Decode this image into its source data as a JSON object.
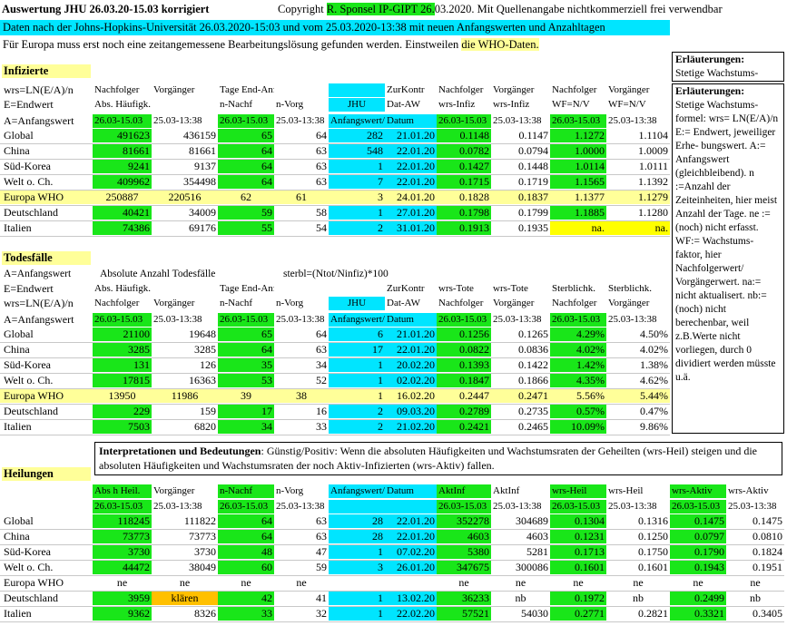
{
  "header": {
    "title": "Auswertung JHU 26.03.20-15.03 korrigiert",
    "copyright_pre": "Copyright ",
    "copyright_hl": "R. Sponsel IP-GIPT 26.",
    "copyright_post": "03.2020. Mit Quellenangabe nichtkommerziell frei verwendbar",
    "line2": "Daten nach der Johns-Hopkins-Universität 26.03.2020-15:03 und vom 25.03.2020-13:38 mit neuen Anfangswerten und Anzahltagen",
    "line3_pre": "Für Europa muss erst noch eine zeitangemessene Bearbeitungslösung gefunden werden. Einstweilen ",
    "line3_hl": "die WHO-Daten."
  },
  "sidebar": {
    "box1_title": "Erläuterungen:",
    "box1_text": "Stetige Wachstums-",
    "box2_title": "Erläuterungen:",
    "box2_text": "Stetige Wachstums-formel: wrs= LN(E/A)/n E:= Endwert, jeweiliger Erhe- bungswert. A:= Anfangswert (gleichbleibend). n :=Anzahl der Zeiteinheiten, hier meist Anzahl der Tage. ne := (noch) nicht erfasst. WF:= Wachstums-faktor, hier Nachfolgerwert/ Vorgängerwert. na:= nicht aktualisert. nb:=(noch) nicht berechenbar, weil z.B.Werte nicht vorliegen, durch 0 dividiert werden müsste u.ä."
  },
  "infizierte": {
    "title": "Infizierte",
    "hdr1": [
      "wrs=LN(E/A)/n",
      "Nachfolger",
      "Vorgänger",
      "Tage End-Anf-Wert",
      "",
      "",
      "ZurKontr",
      "Nachfolger",
      "Vorgänger",
      "Nachfolger",
      "Vorgänger"
    ],
    "hdr2": [
      "E=Endwert",
      "Abs. Häufigk. Infiz.",
      "",
      "n-Nachf",
      "n-Vorg",
      "JHU",
      "Dat-AW",
      "wrs-Infiz",
      "wrs-Infiz",
      "WF=N/V",
      "WF=N/V"
    ],
    "hdr3": [
      "A=Anfangswert",
      "26.03-15.03",
      "25.03-13:38",
      "26.03-15.03",
      "25.03-13:38",
      "Anfangswert/",
      "Datum",
      "26.03-15.03",
      "25.03-13:38",
      "26.03-15.03",
      "25.03-13:38"
    ],
    "rows": [
      [
        "Global",
        "491623",
        "436159",
        "65",
        "64",
        "282",
        "21.01.20",
        "0.1148",
        "0.1147",
        "1.1272",
        "1.1104"
      ],
      [
        "China",
        "81661",
        "81661",
        "64",
        "63",
        "548",
        "22.01.20",
        "0.0782",
        "0.0794",
        "1.0000",
        "1.0009"
      ],
      [
        "Süd-Korea",
        "9241",
        "9137",
        "64",
        "63",
        "1",
        "22.01.20",
        "0.1427",
        "0.1448",
        "1.0114",
        "1.0111"
      ],
      [
        "Welt o. Ch.",
        "409962",
        "354498",
        "64",
        "63",
        "7",
        "22.01.20",
        "0.1715",
        "0.1719",
        "1.1565",
        "1.1392"
      ],
      [
        "Europa WHO",
        "250887",
        "220516",
        "62",
        "61",
        "3",
        "24.01.20",
        "0.1828",
        "0.1837",
        "1.1377",
        "1.1279"
      ],
      [
        "Deutschland",
        "40421",
        "34009",
        "59",
        "58",
        "1",
        "27.01.20",
        "0.1798",
        "0.1799",
        "1.1885",
        "1.1280"
      ],
      [
        "Italien",
        "74386",
        "69176",
        "55",
        "54",
        "2",
        "31.01.20",
        "0.1913",
        "0.1935",
        "na.",
        "na."
      ]
    ]
  },
  "todesfaelle": {
    "title": "Todesfälle",
    "sub_a": "A=Anfangswert",
    "sub_b": "Absolute Anzahl Todesfälle",
    "sub_c": "sterbl=(Ntot/Ninfiz)*100",
    "hdr1": [
      "E=Endwert",
      "Abs. Häufigk. Tote",
      "",
      "Tage End-Anf-Wert",
      "",
      "",
      "ZurKontr",
      "wrs-Tote",
      "wrs-Tote",
      "Sterblichk.",
      "Sterblichk."
    ],
    "hdr2": [
      "wrs=LN(E/A)/n",
      "Nachfolger",
      "Vorgänger",
      "n-Nachf",
      "n-Vorg",
      "JHU",
      "Dat-AW",
      "Nachfolger",
      "Vorgänger",
      "Nachfolger",
      "Vorgänger"
    ],
    "hdr3": [
      "A=Anfangswert",
      "26.03-15.03",
      "25.03-13:38",
      "26.03-15.03",
      "25.03-13:38",
      "Anfangswert/",
      "Datum",
      "26.03-15.03",
      "25.03-13:38",
      "26.03-15.03",
      "25.03-13:38"
    ],
    "rows": [
      [
        "Global",
        "21100",
        "19648",
        "65",
        "64",
        "6",
        "21.01.20",
        "0.1256",
        "0.1265",
        "4.29%",
        "4.50%"
      ],
      [
        "China",
        "3285",
        "3285",
        "64",
        "63",
        "17",
        "22.01.20",
        "0.0822",
        "0.0836",
        "4.02%",
        "4.02%"
      ],
      [
        "Süd-Korea",
        "131",
        "126",
        "35",
        "34",
        "1",
        "20.02.20",
        "0.1393",
        "0.1422",
        "1.42%",
        "1.38%"
      ],
      [
        "Welt o. Ch.",
        "17815",
        "16363",
        "53",
        "52",
        "1",
        "02.02.20",
        "0.1847",
        "0.1866",
        "4.35%",
        "4.62%"
      ],
      [
        "Europa WHO",
        "13950",
        "11986",
        "39",
        "38",
        "1",
        "16.02.20",
        "0.2447",
        "0.2471",
        "5.56%",
        "5.44%"
      ],
      [
        "Deutschland",
        "229",
        "159",
        "17",
        "16",
        "2",
        "09.03.20",
        "0.2789",
        "0.2735",
        "0.57%",
        "0.47%"
      ],
      [
        "Italien",
        "7503",
        "6820",
        "34",
        "33",
        "2",
        "21.02.20",
        "0.2421",
        "0.2465",
        "10.09%",
        "9.86%"
      ]
    ]
  },
  "interpretation": {
    "bold": "Interpretationen und Bedeutungen",
    "text": ": Günstig/Positiv: Wenn die absoluten Häufigkeiten und Wachstumsraten der Geheilten (wrs-Heil) steigen und die absoluten Häufigkeiten und Wachstumsraten der noch Aktiv-Infizierten (wrs-Aktiv) fallen."
  },
  "heilungen": {
    "title": "Heilungen",
    "hdr1": [
      "",
      "Abs h Heil.",
      "Vorgänger",
      "n-Nachf",
      "n-Vorg",
      "Anfangswert/",
      "Datum",
      "AktInf",
      "AktInf",
      "wrs-Heil",
      "wrs-Heil",
      "wrs-Aktiv",
      "wrs-Aktiv"
    ],
    "hdr2": [
      "",
      "26.03-15.03",
      "25.03-13:38",
      "26.03-15.03",
      "25.03-13:38",
      "",
      "",
      "26.03-15.03",
      "25.03-13:38",
      "26.03-15.03",
      "25.03-13:38",
      "26.03-15.03",
      "25.03-13:38"
    ],
    "rows": [
      [
        "Global",
        "118245",
        "111822",
        "64",
        "63",
        "28",
        "22.01.20",
        "352278",
        "304689",
        "0.1304",
        "0.1316",
        "0.1475",
        "0.1475"
      ],
      [
        "China",
        "73773",
        "73773",
        "64",
        "63",
        "28",
        "22.01.20",
        "4603",
        "4603",
        "0.1231",
        "0.1250",
        "0.0797",
        "0.0810"
      ],
      [
        "Süd-Korea",
        "3730",
        "3730",
        "48",
        "47",
        "1",
        "07.02.20",
        "5380",
        "5281",
        "0.1713",
        "0.1750",
        "0.1790",
        "0.1824"
      ],
      [
        "Welt o. Ch.",
        "44472",
        "38049",
        "60",
        "59",
        "3",
        "26.01.20",
        "347675",
        "300086",
        "0.1601",
        "0.1601",
        "0.1943",
        "0.1951"
      ],
      [
        "Europa WHO",
        "ne",
        "ne",
        "ne",
        "ne",
        "",
        "",
        "ne",
        "ne",
        "ne",
        "ne",
        "ne",
        "ne"
      ],
      [
        "Deutschland",
        "3959",
        "klären",
        "42",
        "41",
        "1",
        "13.02.20",
        "36233",
        "nb",
        "0.1972",
        "nb",
        "0.2499",
        "nb"
      ],
      [
        "Italien",
        "9362",
        "8326",
        "33",
        "32",
        "1",
        "22.02.20",
        "57521",
        "54030",
        "0.2771",
        "0.2821",
        "0.3321",
        "0.3405"
      ]
    ]
  },
  "colors": {
    "green": "#19e619",
    "cyan": "#00e5ff",
    "yellow": "#ffff99",
    "orange": "#ffc000"
  }
}
